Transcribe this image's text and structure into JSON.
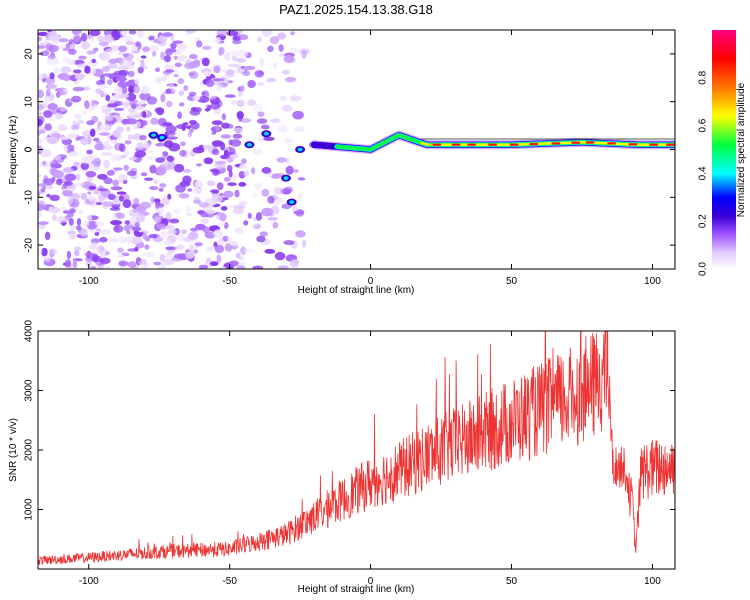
{
  "title": "PAZ1.2025.154.13.38.G18",
  "chart_data": [
    {
      "type": "heatmap",
      "xlabel": "Height of straight line (km)",
      "ylabel": "Frequency (Hz)",
      "xlim": [
        -118,
        108
      ],
      "ylim": [
        -25,
        25
      ],
      "x_ticks": [
        -100,
        -50,
        0,
        50,
        100
      ],
      "y_ticks": [
        -20,
        -10,
        0,
        10,
        20
      ],
      "colorbar": {
        "label": "Normalized spectral amplitude",
        "range": [
          0,
          1
        ],
        "ticks": [
          0.0,
          0.2,
          0.4,
          0.6,
          0.8
        ],
        "colors": [
          "#ffffff",
          "#e0c8ff",
          "#9a4dff",
          "#3a00d6",
          "#0000ff",
          "#00ffff",
          "#00ff40",
          "#ffff00",
          "#ff8000",
          "#ff0000",
          "#ff0080"
        ]
      },
      "ridge": [
        {
          "x": -50,
          "freq": 1.0
        },
        {
          "x": -35,
          "freq": 3.5
        },
        {
          "x": -30,
          "freq": -6.0
        },
        {
          "x": -28,
          "freq": -11.0
        },
        {
          "x": -20,
          "freq": 1.0
        },
        {
          "x": -10,
          "freq": 0.5
        },
        {
          "x": 0,
          "freq": 0.0
        },
        {
          "x": 10,
          "freq": 3.0
        },
        {
          "x": 20,
          "freq": 1.0
        },
        {
          "x": 50,
          "freq": 1.0
        },
        {
          "x": 75,
          "freq": 1.5
        },
        {
          "x": 95,
          "freq": 1.0
        },
        {
          "x": 108,
          "freq": 1.0
        }
      ]
    },
    {
      "type": "line",
      "xlabel": "Height of straight line (km)",
      "ylabel": "SNR (10 * v/v)",
      "xlim": [
        -118,
        108
      ],
      "ylim": [
        0,
        4000
      ],
      "x_ticks": [
        -100,
        -50,
        0,
        50,
        100
      ],
      "y_ticks": [
        1000,
        2000,
        3000,
        4000
      ],
      "color": "#ee3333",
      "series_envelope": [
        {
          "x": -118,
          "y": 150
        },
        {
          "x": -100,
          "y": 200
        },
        {
          "x": -75,
          "y": 300
        },
        {
          "x": -50,
          "y": 350
        },
        {
          "x": -30,
          "y": 600
        },
        {
          "x": -20,
          "y": 900
        },
        {
          "x": -10,
          "y": 1200
        },
        {
          "x": 0,
          "y": 1500
        },
        {
          "x": 10,
          "y": 1700
        },
        {
          "x": 20,
          "y": 1950
        },
        {
          "x": 30,
          "y": 2150
        },
        {
          "x": 40,
          "y": 2350
        },
        {
          "x": 50,
          "y": 2550
        },
        {
          "x": 60,
          "y": 2750
        },
        {
          "x": 70,
          "y": 2950
        },
        {
          "x": 80,
          "y": 3200
        },
        {
          "x": 84,
          "y": 3500
        },
        {
          "x": 86,
          "y": 1750
        },
        {
          "x": 90,
          "y": 1750
        },
        {
          "x": 93,
          "y": 1100
        },
        {
          "x": 94,
          "y": 300
        },
        {
          "x": 96,
          "y": 1700
        },
        {
          "x": 108,
          "y": 1800
        }
      ]
    }
  ]
}
